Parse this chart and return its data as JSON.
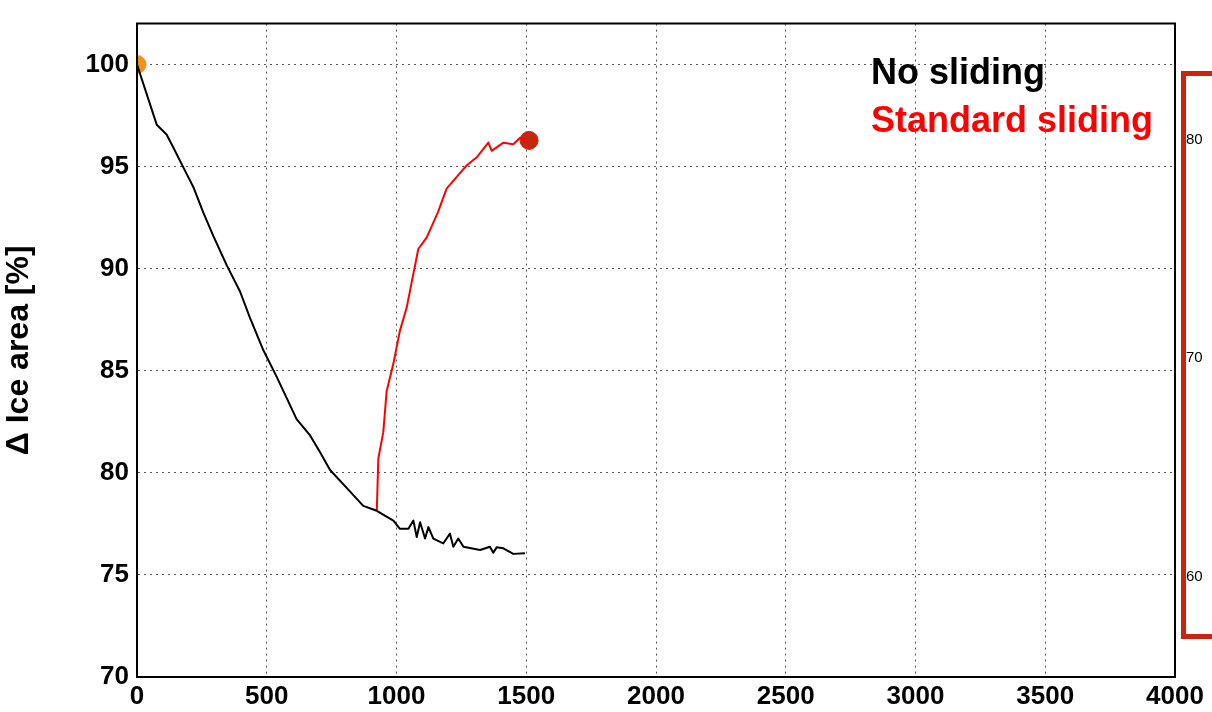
{
  "chart_data": {
    "type": "line",
    "ylabel": "Δ Ice area [%]",
    "xlim": [
      0,
      4000
    ],
    "xticks": [
      0,
      500,
      1000,
      1500,
      2000,
      2500,
      3000,
      3500,
      4000
    ],
    "ylim": [
      70,
      102
    ],
    "yticks": [
      70,
      75,
      80,
      85,
      90,
      95,
      100
    ],
    "y2lim": [
      55.4,
      85.3
    ],
    "y2ticks": [
      60,
      70,
      80
    ],
    "grid": true,
    "legend": "top right",
    "series": [
      {
        "name": "No sliding",
        "color": "#000000",
        "x": [
          0,
          76,
          114,
          140,
          178,
          217,
          256,
          294,
          346,
          397,
          435,
          487,
          538,
          615,
          667,
          705,
          744,
          808,
          872,
          924,
          988,
          1013,
          1046,
          1065,
          1078,
          1091,
          1110,
          1123,
          1142,
          1180,
          1206,
          1219,
          1238,
          1258,
          1322,
          1360,
          1373,
          1386,
          1412,
          1450,
          1495
        ],
        "values": [
          100,
          97.05,
          96.57,
          95.93,
          94.97,
          94.0,
          92.73,
          91.6,
          90.16,
          88.88,
          87.6,
          86.0,
          84.71,
          82.63,
          81.83,
          81.02,
          80.14,
          79.26,
          78.38,
          78.14,
          77.66,
          77.26,
          77.26,
          77.66,
          76.86,
          77.58,
          76.78,
          77.34,
          76.78,
          76.54,
          77.02,
          76.38,
          76.78,
          76.38,
          76.22,
          76.38,
          76.09,
          76.35,
          76.3,
          76.03,
          76.06
        ]
      },
      {
        "name": "Standard sliding",
        "color": "#ff0000",
        "x": [
          924,
          930,
          949,
          962,
          988,
          1013,
          1039,
          1084,
          1116,
          1136,
          1161,
          1193,
          1232,
          1270,
          1309,
          1354,
          1367,
          1412,
          1450,
          1476,
          1495
        ],
        "values": [
          78.14,
          80.7,
          81.99,
          83.99,
          85.35,
          86.95,
          88.08,
          90.96,
          91.52,
          92.08,
          92.8,
          93.92,
          94.49,
          95.05,
          95.45,
          96.17,
          95.77,
          96.17,
          96.09,
          96.41,
          96.3
        ]
      },
      {
        "type": "scatter",
        "marker": "circle",
        "color": "#f39019",
        "x": [
          0
        ],
        "values": [
          100
        ]
      },
      {
        "type": "scatter",
        "marker": "circle",
        "color": "#c8250e",
        "x": [
          1511
        ],
        "values": [
          96.28
        ]
      }
    ]
  }
}
